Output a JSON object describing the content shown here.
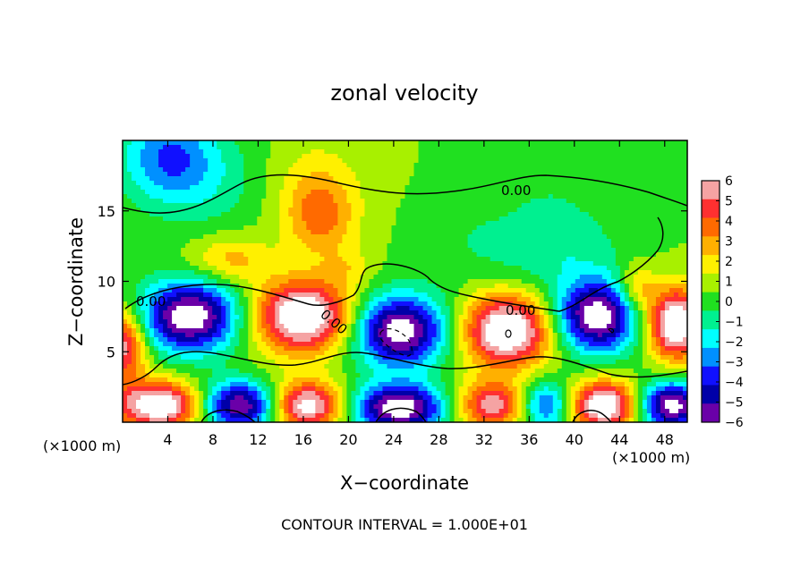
{
  "chart_data": {
    "type": "heatmap",
    "title": "zonal velocity",
    "xlabel": "X−coordinate",
    "ylabel": "Z−coordinate",
    "x_unit_left": "(×1000 m)",
    "x_unit_right": "(×1000 m)",
    "footer": "CONTOUR INTERVAL = 1.000E+01",
    "xlim": [
      0,
      50
    ],
    "ylim": [
      0,
      20
    ],
    "x_ticks": [
      4,
      8,
      12,
      16,
      20,
      24,
      28,
      32,
      36,
      40,
      44,
      48
    ],
    "y_ticks": [
      5,
      10,
      15
    ],
    "contour_labels": [
      "0.00",
      "0.00",
      "0.00",
      "0.00"
    ],
    "colorbar": {
      "levels": [
        6,
        5,
        4,
        3,
        2,
        1,
        0,
        -1,
        -2,
        -3,
        -4,
        -5,
        -6
      ],
      "labels": [
        "6",
        "5",
        "4",
        "3",
        "2",
        "1",
        "0",
        "−1",
        "−2",
        "−3",
        "−4",
        "−5",
        "−6"
      ],
      "colors": [
        "#f5a3a3",
        "#ff3030",
        "#ff6a00",
        "#ffb000",
        "#fff000",
        "#a8f000",
        "#20e020",
        "#00f090",
        "#00ffff",
        "#0090ff",
        "#1010ff",
        "#0000a8",
        "#6a00a8"
      ]
    },
    "field": {
      "background": 0.5,
      "blobs": [
        {
          "x": 4,
          "y": 19,
          "sx": 3.0,
          "sy": 2.2,
          "a": -3.5
        },
        {
          "x": 7,
          "y": 17,
          "sx": 4,
          "sy": 2.5,
          "a": -1.5
        },
        {
          "x": 17.5,
          "y": 14.5,
          "sx": 2.2,
          "sy": 2.0,
          "a": 3.0
        },
        {
          "x": 17,
          "y": 17,
          "sx": 3,
          "sy": 2.5,
          "a": 1.3
        },
        {
          "x": 9.5,
          "y": 11.5,
          "sx": 2.5,
          "sy": 1.2,
          "a": 2.5
        },
        {
          "x": 38,
          "y": 12,
          "sx": 4.5,
          "sy": 2.0,
          "a": -1.5
        },
        {
          "x": 30,
          "y": 13,
          "sx": 3,
          "sy": 2,
          "a": -0.6
        },
        {
          "x": 20,
          "y": 11,
          "sx": 1.5,
          "sy": 1,
          "a": 1.2
        },
        {
          "x": 38,
          "y": 16,
          "sx": 4,
          "sy": 3,
          "a": -0.8
        },
        {
          "x": 6,
          "y": 7.5,
          "sx": 3.2,
          "sy": 1.8,
          "a": -8
        },
        {
          "x": 16,
          "y": 7.5,
          "sx": 3.2,
          "sy": 1.8,
          "a": 8
        },
        {
          "x": 24.5,
          "y": 6.5,
          "sx": 3.0,
          "sy": 1.8,
          "a": -8
        },
        {
          "x": 34,
          "y": 6.5,
          "sx": 2.8,
          "sy": 1.8,
          "a": 8
        },
        {
          "x": 42,
          "y": 7.5,
          "sx": 2.6,
          "sy": 1.8,
          "a": -8
        },
        {
          "x": 49,
          "y": 7.0,
          "sx": 1.8,
          "sy": 1.8,
          "a": 8
        },
        {
          "x": 0,
          "y": 5.5,
          "sx": 1.5,
          "sy": 1.8,
          "a": 6
        },
        {
          "x": 45.5,
          "y": 9.5,
          "sx": 1.2,
          "sy": 1.2,
          "a": 3
        },
        {
          "x": 3.5,
          "y": 1.2,
          "sx": 3.0,
          "sy": 1.2,
          "a": 8
        },
        {
          "x": 10.5,
          "y": 1.2,
          "sx": 3.0,
          "sy": 1.2,
          "a": -8
        },
        {
          "x": 16,
          "y": 1.2,
          "sx": 2.5,
          "sy": 1.2,
          "a": 8
        },
        {
          "x": 24.5,
          "y": 1.0,
          "sx": 3.0,
          "sy": 1.2,
          "a": -8
        },
        {
          "x": 33,
          "y": 1.2,
          "sx": 2.5,
          "sy": 1.2,
          "a": 6
        },
        {
          "x": 37.5,
          "y": 1.2,
          "sx": 2.0,
          "sy": 1.2,
          "a": -6
        },
        {
          "x": 42.5,
          "y": 1.2,
          "sx": 2.5,
          "sy": 1.2,
          "a": 8
        },
        {
          "x": 48.5,
          "y": 1.2,
          "sx": 2.2,
          "sy": 1.2,
          "a": -8
        }
      ]
    }
  }
}
